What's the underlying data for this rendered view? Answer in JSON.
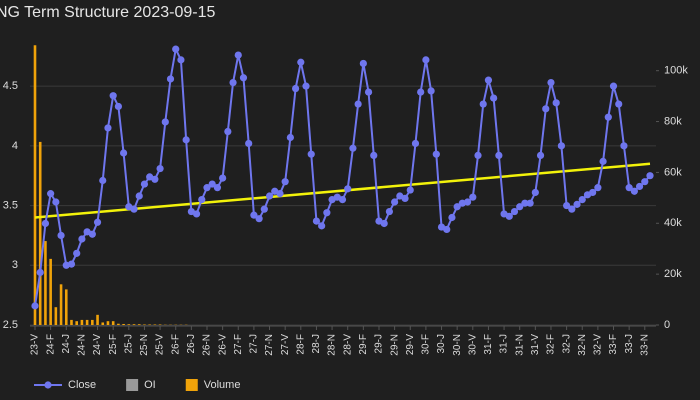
{
  "chart_data": {
    "type": "line",
    "title": "NG Term Structure 2023-09-15",
    "categories": [
      "23-V",
      null,
      null,
      "24-F",
      null,
      null,
      "24-J",
      null,
      null,
      "24-N",
      null,
      null,
      "24-V",
      null,
      null,
      "25-F",
      null,
      null,
      "25-J",
      null,
      null,
      "25-N",
      null,
      null,
      "25-V",
      null,
      null,
      "26-F",
      null,
      null,
      "26-J",
      null,
      null,
      "26-N",
      null,
      null,
      "26-V",
      null,
      null,
      "27-F",
      null,
      null,
      "27-J",
      null,
      null,
      "27-N",
      null,
      null,
      "27-V",
      null,
      null,
      "28-F",
      null,
      null,
      "28-J",
      null,
      null,
      "28-N",
      null,
      null,
      "28-V",
      null,
      null,
      "29-F",
      null,
      null,
      "29-J",
      null,
      null,
      "29-N",
      null,
      null,
      "29-V",
      null,
      null,
      "30-F",
      null,
      null,
      "30-J",
      null,
      null,
      "30-N",
      null,
      null,
      "30-V",
      null,
      null,
      "31-F",
      null,
      null,
      "31-J",
      null,
      null,
      "31-N",
      null,
      null,
      "31-V",
      null,
      null,
      "32-F",
      null,
      null,
      "32-J",
      null,
      null,
      "32-N",
      null,
      null,
      "32-V",
      null,
      null,
      "33-F",
      null,
      null,
      "33-J",
      null,
      null,
      "33-N",
      null
    ],
    "series": [
      {
        "name": "Close",
        "color": "#6f76ee",
        "axis": "y",
        "values": [
          2.66,
          2.94,
          3.35,
          3.6,
          3.53,
          3.25,
          3.0,
          3.01,
          3.1,
          3.22,
          3.28,
          3.26,
          3.36,
          3.71,
          4.15,
          4.42,
          4.33,
          3.94,
          3.49,
          3.47,
          3.58,
          3.68,
          3.74,
          3.72,
          3.81,
          4.2,
          4.56,
          4.81,
          4.72,
          4.05,
          3.45,
          3.43,
          3.55,
          3.65,
          3.68,
          3.65,
          3.73,
          4.12,
          4.53,
          4.76,
          4.57,
          4.02,
          3.42,
          3.39,
          3.47,
          3.58,
          3.62,
          3.6,
          3.7,
          4.07,
          4.48,
          4.7,
          4.5,
          3.93,
          3.37,
          3.33,
          3.44,
          3.55,
          3.57,
          3.55,
          3.64,
          3.98,
          4.35,
          4.69,
          4.45,
          3.92,
          3.37,
          3.35,
          3.45,
          3.53,
          3.58,
          3.56,
          3.63,
          4.02,
          4.45,
          4.72,
          4.46,
          3.93,
          3.32,
          3.3,
          3.4,
          3.49,
          3.52,
          3.53,
          3.57,
          3.92,
          4.35,
          4.55,
          4.4,
          3.92,
          3.43,
          3.41,
          3.45,
          3.49,
          3.52,
          3.52,
          3.61,
          3.92,
          4.31,
          4.53,
          4.36,
          4.0,
          3.5,
          3.47,
          3.51,
          3.55,
          3.59,
          3.61,
          3.65,
          3.87,
          4.24,
          4.5,
          4.35,
          4.0,
          3.65,
          3.62,
          3.66,
          3.7,
          3.75
        ]
      },
      {
        "name": "OI",
        "color": "#9a9a9a",
        "axis": "y2"
      },
      {
        "name": "Volume",
        "color": "#f0a30a",
        "axis": "y2",
        "values": [
          110000,
          72000,
          33000,
          26000,
          7000,
          16000,
          14000,
          2000,
          1500,
          2000,
          2000,
          2000,
          4000,
          1000,
          1500,
          1500,
          500,
          400,
          300,
          300,
          300,
          200,
          200,
          200,
          200,
          100,
          100,
          100,
          100,
          100,
          0,
          0,
          0,
          0,
          0,
          0,
          0,
          0,
          0,
          0,
          0,
          0,
          0,
          0,
          0,
          0,
          0,
          0,
          0,
          0,
          0,
          0,
          0,
          0,
          0,
          0,
          0,
          0,
          0,
          0,
          0,
          0,
          0,
          0,
          0,
          0,
          0,
          0,
          0,
          0,
          0,
          0,
          0,
          0,
          0,
          0,
          0,
          0,
          0,
          0,
          0,
          0,
          0,
          0,
          0,
          0,
          0,
          0,
          0,
          0,
          0,
          0,
          0,
          0,
          0,
          0,
          0,
          0,
          0,
          0,
          0,
          0,
          0,
          0,
          0,
          0,
          0,
          0,
          0,
          0,
          0,
          0,
          0,
          0,
          0,
          0,
          0,
          0,
          0
        ]
      }
    ],
    "trendline": {
      "color": "#f2f20a",
      "start": 3.4,
      "end": 3.85
    },
    "ylim": [
      2.5,
      4.97
    ],
    "yticks": [
      2.5,
      3,
      3.5,
      4,
      4.5
    ],
    "y2lim": [
      0,
      116000
    ],
    "y2ticks": [
      0,
      {
        "value": 20000,
        "label": "20k"
      },
      {
        "value": 40000,
        "label": "40k"
      },
      {
        "value": 60000,
        "label": "60k"
      },
      {
        "value": 80000,
        "label": "80k"
      },
      {
        "value": 100000,
        "label": "100k"
      }
    ],
    "grid": true,
    "legend": "bottom-left"
  }
}
